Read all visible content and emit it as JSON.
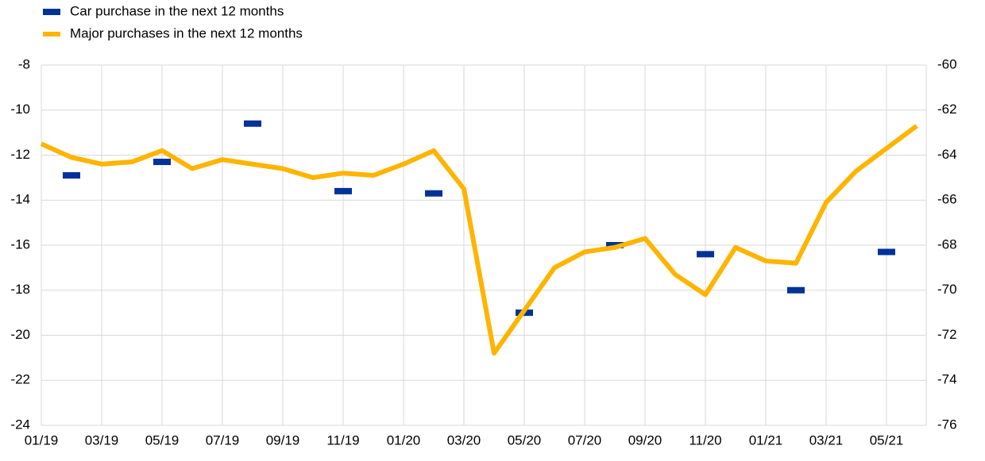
{
  "chart_data": {
    "type": "line",
    "categories": [
      "01/19",
      null,
      "03/19",
      null,
      "05/19",
      null,
      "07/19",
      null,
      "09/19",
      null,
      "11/19",
      null,
      "01/20",
      null,
      "03/20",
      null,
      "05/20",
      null,
      "07/20",
      null,
      "09/20",
      null,
      "11/20",
      null,
      "01/21",
      null,
      "03/21",
      null,
      "05/21",
      null
    ],
    "series": [
      {
        "name": "Car purchase in the next 12 months",
        "color": "#003299",
        "axis": "y2",
        "marker": "dash",
        "values": [
          null,
          -64.9,
          null,
          null,
          -64.3,
          null,
          null,
          -62.6,
          null,
          null,
          -65.6,
          null,
          null,
          -65.7,
          null,
          null,
          -71.0,
          null,
          null,
          -68.0,
          null,
          null,
          -68.4,
          null,
          null,
          -70.0,
          null,
          null,
          -68.3,
          null
        ]
      },
      {
        "name": "Major purchases in the next 12 months",
        "color": "#ffb400",
        "values": [
          -11.5,
          -12.1,
          -12.4,
          -12.3,
          -11.8,
          -12.6,
          -12.2,
          -12.4,
          -12.6,
          -13.0,
          -12.8,
          -12.9,
          -12.4,
          -11.8,
          -13.5,
          -20.8,
          -18.9,
          -17.0,
          -16.3,
          -16.1,
          -15.7,
          -17.3,
          -18.2,
          -16.1,
          -16.7,
          -16.8,
          -14.1,
          -12.7,
          -11.7,
          -10.7
        ]
      }
    ],
    "ylim": [
      -24,
      -8
    ],
    "yticks": [
      -24,
      -22,
      -20,
      -18,
      -16,
      -14,
      -12,
      -10,
      -8
    ],
    "y2lim": [
      -76,
      -60
    ],
    "y2ticks": [
      -76,
      -74,
      -72,
      -70,
      -68,
      -66,
      -64,
      -62,
      -60
    ],
    "grid": true
  }
}
